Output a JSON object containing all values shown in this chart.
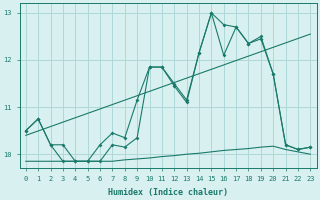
{
  "xlabel": "Humidex (Indice chaleur)",
  "bg_color": "#d9f0f0",
  "grid_color": "#b0d8d8",
  "line_color": "#1a7a6a",
  "xlim": [
    -0.5,
    23.5
  ],
  "ylim": [
    9.7,
    13.2
  ],
  "yticks": [
    10,
    11,
    12,
    13
  ],
  "xticks": [
    0,
    1,
    2,
    3,
    4,
    5,
    6,
    7,
    8,
    9,
    10,
    11,
    12,
    13,
    14,
    15,
    16,
    17,
    18,
    19,
    20,
    21,
    22,
    23
  ],
  "series": [
    {
      "x": [
        0,
        1,
        2,
        3,
        4,
        5,
        6,
        7,
        8,
        9,
        10,
        11,
        12,
        13,
        14,
        15,
        16,
        17,
        18,
        19,
        20,
        21,
        22,
        23
      ],
      "y": [
        10.5,
        10.75,
        10.2,
        10.2,
        9.85,
        9.85,
        10.2,
        10.45,
        10.35,
        11.15,
        11.85,
        11.85,
        11.5,
        11.15,
        12.15,
        13.0,
        12.75,
        12.7,
        12.35,
        12.5,
        11.7,
        10.2,
        10.1,
        10.15
      ],
      "markers": true
    },
    {
      "x": [
        0,
        1,
        2,
        3,
        4,
        5,
        6,
        7,
        8,
        9,
        10,
        11,
        12,
        13,
        14,
        15,
        16,
        17,
        18,
        19,
        20,
        21,
        22,
        23
      ],
      "y": [
        10.5,
        10.75,
        10.2,
        9.85,
        9.85,
        9.85,
        9.85,
        10.2,
        10.15,
        10.35,
        11.85,
        11.85,
        11.45,
        11.1,
        12.15,
        13.0,
        12.1,
        12.7,
        12.35,
        12.45,
        11.7,
        10.2,
        10.1,
        10.15
      ],
      "markers": true
    },
    {
      "x": [
        0,
        23
      ],
      "y": [
        10.4,
        12.55
      ],
      "markers": false
    },
    {
      "x": [
        0,
        1,
        2,
        3,
        4,
        5,
        6,
        7,
        8,
        9,
        10,
        11,
        12,
        13,
        14,
        15,
        16,
        17,
        18,
        19,
        20,
        21,
        22,
        23
      ],
      "y": [
        9.85,
        9.85,
        9.85,
        9.85,
        9.85,
        9.85,
        9.85,
        9.85,
        9.88,
        9.9,
        9.92,
        9.95,
        9.97,
        10.0,
        10.02,
        10.05,
        10.08,
        10.1,
        10.12,
        10.15,
        10.17,
        10.1,
        10.05,
        10.0
      ],
      "markers": false
    }
  ]
}
